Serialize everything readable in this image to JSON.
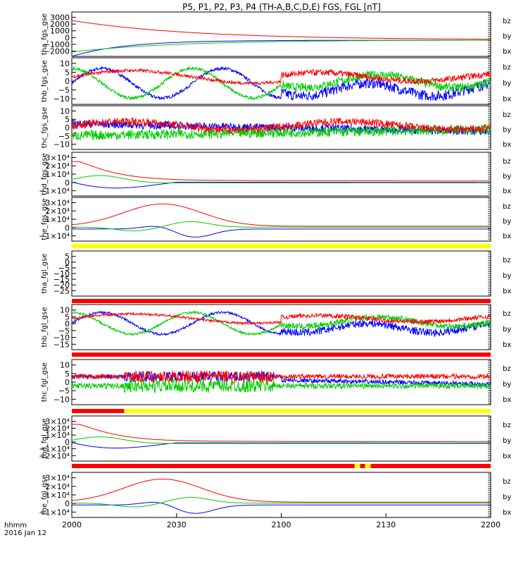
{
  "chart_data": {
    "type": "line",
    "title": "P5, P1, P2, P3, P4 (TH-A,B,C,D,E) FGS, FGL [nT]",
    "x_tick_labels": [
      "2000",
      "2030",
      "2100",
      "2130",
      "2200"
    ],
    "x_unit_label": "hhmm",
    "date_label": "2016 Jan 12",
    "x_range_hhmm": [
      "2000",
      "2200"
    ],
    "legend": [
      "bz",
      "by",
      "bx"
    ],
    "colors": {
      "bx": "#0000ff",
      "by": "#00cc00",
      "bz": "#ff0000",
      "flag_on": "#ffff00",
      "flag_off": "#ff0000"
    },
    "panels": [
      {
        "ylabel": "tha_fgs_gse",
        "yticks": [
          "3000",
          "2000",
          "1000",
          "0",
          "−1000",
          "−2000"
        ],
        "ylim": [
          -2000,
          3500
        ],
        "shape": "decay-a"
      },
      {
        "ylabel": "thb_fgs_gse",
        "yticks": [
          "10",
          "5",
          "0",
          "−5",
          "−10"
        ],
        "ylim": [
          -10,
          12
        ],
        "shape": "wave"
      },
      {
        "ylabel": "thc_fgs_gse",
        "yticks": [
          "10",
          "5",
          "0",
          "−5",
          "−10"
        ],
        "ylim": [
          -10,
          12
        ],
        "shape": "noisy"
      },
      {
        "ylabel": "thd_fgs_gse",
        "yticks": [
          "3×10⁴",
          "2×10⁴",
          "1×10⁴",
          "0",
          "−1×10⁴"
        ],
        "ylim": [
          -15000,
          32000
        ],
        "shape": "decay-d"
      },
      {
        "ylabel": "the_fgs_gse",
        "yticks": [
          "3×10⁴",
          "2×10⁴",
          "1×10⁴",
          "0",
          "−1×10⁴"
        ],
        "ylim": [
          -15000,
          32000
        ],
        "shape": "hump"
      },
      {
        "ylabel": "tha_fgl_gse",
        "yticks": [
          "5",
          "0",
          "−5",
          "−10",
          "−15",
          "−20",
          "−25"
        ],
        "ylim": [
          -27,
          7
        ],
        "shape": "empty"
      },
      {
        "ylabel": "thb_fgl_gse",
        "yticks": [
          "10",
          "5",
          "0",
          "−5",
          "−10",
          "−15"
        ],
        "ylim": [
          -17,
          12
        ],
        "shape": "wave"
      },
      {
        "ylabel": "thc_fgl_gse",
        "yticks": [
          "10",
          "5",
          "0",
          "−5",
          "−10"
        ],
        "ylim": [
          -12,
          12
        ],
        "shape": "burst"
      },
      {
        "ylabel": "thd_fgl_gse",
        "yticks": [
          "3×10⁴",
          "2×10⁴",
          "1×10⁴",
          "0",
          "−1×10⁴",
          "−2×10⁴"
        ],
        "ylim": [
          -22000,
          32000
        ],
        "shape": "decay-d"
      },
      {
        "ylabel": "the_fgl_gse",
        "yticks": [
          "3×10⁴",
          "2×10⁴",
          "1×10⁴",
          "0",
          "−1×10⁴"
        ],
        "ylim": [
          -15000,
          32000
        ],
        "shape": "hump"
      }
    ],
    "flag_bars": [
      {
        "after_panel": 4,
        "state": "all-on"
      },
      {
        "after_panel": 5,
        "state": "all-off"
      },
      {
        "after_panel": 6,
        "state": "all-off"
      },
      {
        "after_panel": 7,
        "state": "off-then-on",
        "switch_hhmm": "2015"
      },
      {
        "after_panel": 8,
        "state": "off-with-short-on",
        "on_hhmm": [
          "2122",
          "2125"
        ]
      }
    ]
  }
}
